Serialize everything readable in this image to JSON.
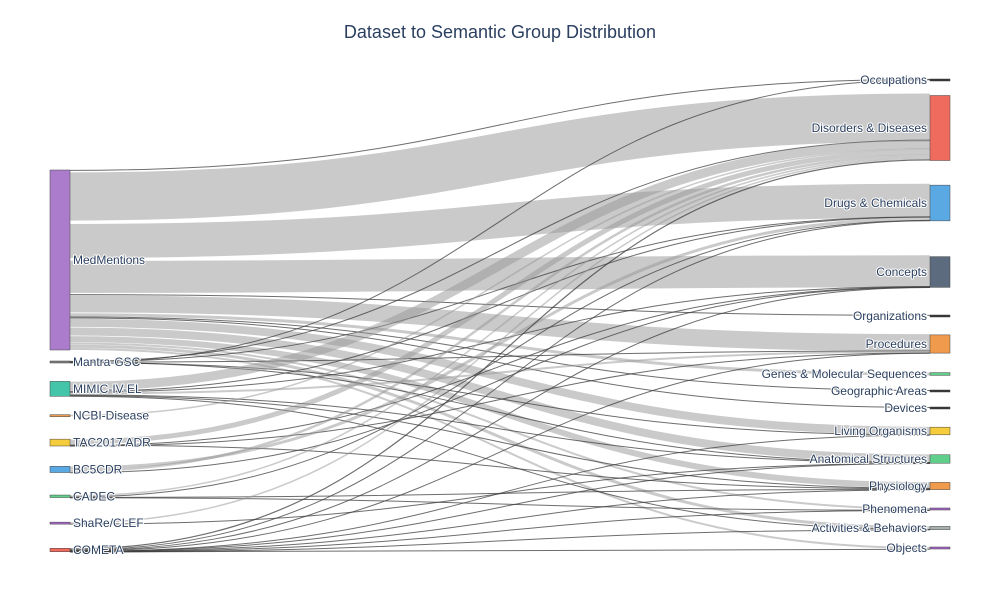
{
  "chart_data": {
    "type": "sankey",
    "title": "Dataset to Semantic Group Distribution",
    "sources": [
      {
        "name": "MedMentions",
        "color": "#ab7ccc"
      },
      {
        "name": "Mantra-GSC",
        "color": "#7f7f7f"
      },
      {
        "name": "MIMIC-IV-EL",
        "color": "#44c4a8"
      },
      {
        "name": "NCBI-Disease",
        "color": "#ef9a4c"
      },
      {
        "name": "TAC2017 ADR",
        "color": "#f5cd3c"
      },
      {
        "name": "BC5CDR",
        "color": "#5aa9e3"
      },
      {
        "name": "CADEC",
        "color": "#5fcf8a"
      },
      {
        "name": "ShaRe/CLEF",
        "color": "#a463c9"
      },
      {
        "name": "COMETA",
        "color": "#ee6b5e"
      }
    ],
    "targets": [
      {
        "name": "Occupations",
        "color": "#333333"
      },
      {
        "name": "Disorders & Diseases",
        "color": "#ee6b5e"
      },
      {
        "name": "Drugs & Chemicals",
        "color": "#5aa9e3"
      },
      {
        "name": "Concepts",
        "color": "#5c6b7d"
      },
      {
        "name": "Organizations",
        "color": "#333333"
      },
      {
        "name": "Procedures",
        "color": "#ef9a4c"
      },
      {
        "name": "Genes & Molecular Sequences",
        "color": "#5fcf8a"
      },
      {
        "name": "Geographic Areas",
        "color": "#333333"
      },
      {
        "name": "Devices",
        "color": "#333333"
      },
      {
        "name": "Living Organisms",
        "color": "#f5cd3c"
      },
      {
        "name": "Anatomical Structures",
        "color": "#5fcf8a"
      },
      {
        "name": "Physiology",
        "color": "#ef9a4c"
      },
      {
        "name": "Phenomena",
        "color": "#a463c9"
      },
      {
        "name": "Activities & Behaviors",
        "color": "#a8b1ad"
      },
      {
        "name": "Objects",
        "color": "#a463c9"
      }
    ],
    "links": [
      {
        "source": "MedMentions",
        "target": "Occupations",
        "value": 0.4
      },
      {
        "source": "MedMentions",
        "target": "Disorders & Diseases",
        "value": 48
      },
      {
        "source": "MedMentions",
        "target": "Drugs & Chemicals",
        "value": 34
      },
      {
        "source": "MedMentions",
        "target": "Concepts",
        "value": 32
      },
      {
        "source": "MedMentions",
        "target": "Organizations",
        "value": 0.4
      },
      {
        "source": "MedMentions",
        "target": "Procedures",
        "value": 17
      },
      {
        "source": "MedMentions",
        "target": "Genes & Molecular Sequences",
        "value": 3
      },
      {
        "source": "MedMentions",
        "target": "Geographic Areas",
        "value": 1
      },
      {
        "source": "MedMentions",
        "target": "Devices",
        "value": 1
      },
      {
        "source": "MedMentions",
        "target": "Living Organisms",
        "value": 8
      },
      {
        "source": "MedMentions",
        "target": "Anatomical Structures",
        "value": 8
      },
      {
        "source": "MedMentions",
        "target": "Physiology",
        "value": 6
      },
      {
        "source": "MedMentions",
        "target": "Phenomena",
        "value": 2
      },
      {
        "source": "MedMentions",
        "target": "Activities & Behaviors",
        "value": 3
      },
      {
        "source": "MedMentions",
        "target": "Objects",
        "value": 2
      },
      {
        "source": "Mantra-GSC",
        "target": "Disorders & Diseases",
        "value": 0.4
      },
      {
        "source": "Mantra-GSC",
        "target": "Drugs & Chemicals",
        "value": 0.3
      },
      {
        "source": "Mantra-GSC",
        "target": "Procedures",
        "value": 0.2
      },
      {
        "source": "Mantra-GSC",
        "target": "Anatomical Structures",
        "value": 0.2
      },
      {
        "source": "Mantra-GSC",
        "target": "Living Organisms",
        "value": 0.2
      },
      {
        "source": "Mantra-GSC",
        "target": "Occupations",
        "value": 0.1
      },
      {
        "source": "MIMIC-IV-EL",
        "target": "Disorders & Diseases",
        "value": 9
      },
      {
        "source": "MIMIC-IV-EL",
        "target": "Drugs & Chemicals",
        "value": 0.6
      },
      {
        "source": "MIMIC-IV-EL",
        "target": "Concepts",
        "value": 0.5
      },
      {
        "source": "MIMIC-IV-EL",
        "target": "Procedures",
        "value": 2
      },
      {
        "source": "MIMIC-IV-EL",
        "target": "Anatomical Structures",
        "value": 0.6
      },
      {
        "source": "MIMIC-IV-EL",
        "target": "Physiology",
        "value": 0.6
      },
      {
        "source": "MIMIC-IV-EL",
        "target": "Activities & Behaviors",
        "value": 0.4
      },
      {
        "source": "NCBI-Disease",
        "target": "Disorders & Diseases",
        "value": 1.5
      },
      {
        "source": "TAC2017 ADR",
        "target": "Disorders & Diseases",
        "value": 5
      },
      {
        "source": "TAC2017 ADR",
        "target": "Physiology",
        "value": 0.6
      },
      {
        "source": "TAC2017 ADR",
        "target": "Concepts",
        "value": 0.4
      },
      {
        "source": "TAC2017 ADR",
        "target": "Procedures",
        "value": 0.3
      },
      {
        "source": "BC5CDR",
        "target": "Drugs & Chemicals",
        "value": 3
      },
      {
        "source": "BC5CDR",
        "target": "Disorders & Diseases",
        "value": 2.5
      },
      {
        "source": "BC5CDR",
        "target": "Concepts",
        "value": 0.2
      },
      {
        "source": "CADEC",
        "target": "Disorders & Diseases",
        "value": 1.5
      },
      {
        "source": "CADEC",
        "target": "Drugs & Chemicals",
        "value": 0.3
      },
      {
        "source": "CADEC",
        "target": "Physiology",
        "value": 0.4
      },
      {
        "source": "CADEC",
        "target": "Phenomena",
        "value": 0.1
      },
      {
        "source": "ShaRe/CLEF",
        "target": "Disorders & Diseases",
        "value": 1.5
      },
      {
        "source": "ShaRe/CLEF",
        "target": "Anatomical Structures",
        "value": 0.2
      },
      {
        "source": "COMETA",
        "target": "Disorders & Diseases",
        "value": 1.2
      },
      {
        "source": "COMETA",
        "target": "Drugs & Chemicals",
        "value": 0.6
      },
      {
        "source": "COMETA",
        "target": "Concepts",
        "value": 0.3
      },
      {
        "source": "COMETA",
        "target": "Procedures",
        "value": 0.3
      },
      {
        "source": "COMETA",
        "target": "Anatomical Structures",
        "value": 0.2
      },
      {
        "source": "COMETA",
        "target": "Living Organisms",
        "value": 0.1
      },
      {
        "source": "COMETA",
        "target": "Physiology",
        "value": 0.2
      },
      {
        "source": "COMETA",
        "target": "Phenomena",
        "value": 0.1
      },
      {
        "source": "COMETA",
        "target": "Activities & Behaviors",
        "value": 0.1
      },
      {
        "source": "COMETA",
        "target": "Objects",
        "value": 0.1
      }
    ]
  }
}
